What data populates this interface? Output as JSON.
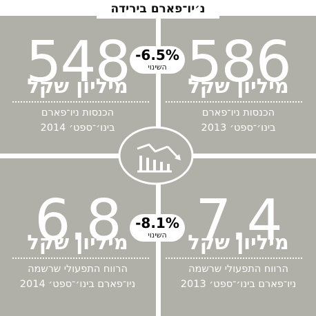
{
  "title": "נ׳יו־פארם בירידה",
  "colors": {
    "panel": "#b0b0a8",
    "text": "#ffffff",
    "badge": "#ffffff"
  },
  "icon": "declining-chart-icon",
  "revenue": {
    "current": {
      "value": "548",
      "unit": "מיליון שקל",
      "desc_line1": "הכנסות ניו־פארם",
      "desc_line2": "בינו׳־ספט׳ 2014"
    },
    "previous": {
      "value": "586",
      "unit": "מיליון שקל",
      "desc_line1": "הכנסות ניו־פארם",
      "desc_line2": "בינו׳־ספט׳ 2013"
    },
    "change": {
      "pct": "-6.5%",
      "label": "השינוי"
    }
  },
  "profit": {
    "current": {
      "value": "6.8",
      "unit": "מיליון שקל",
      "desc_line1": "הרווח התפעולי שרשמה",
      "desc_line2": "ניו־פארם בינו׳־ספט׳ 2014"
    },
    "previous": {
      "value": "7.4",
      "unit": "מיליון שקל",
      "desc_line1": "הרווח התפעולי שרשמה",
      "desc_line2": "ניו־פארם בינו׳־ספט׳ 2013"
    },
    "change": {
      "pct": "-8.1%",
      "label": "השינוי"
    }
  },
  "chart_data": [
    {
      "type": "table",
      "categories": [
        "בינו׳־ספט׳ 2013",
        "בינו׳־ספט׳ 2014"
      ],
      "values": [
        586,
        548
      ],
      "unit": "מיליון שקל",
      "change_pct": -6.5
    },
    {
      "type": "table",
      "categories": [
        "בינו׳־ספט׳ 2013",
        "בינו׳־ספט׳ 2014"
      ],
      "values": [
        7.4,
        6.8
      ],
      "unit": "מיליון שקל",
      "change_pct": -8.1
    }
  ]
}
